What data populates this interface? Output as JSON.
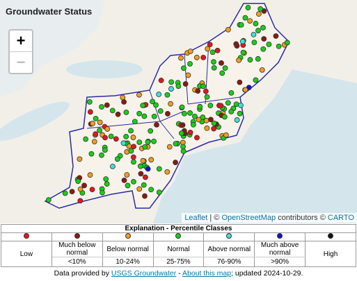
{
  "title": "Groundwater Status",
  "zoom": {
    "in": "+",
    "out": "−"
  },
  "attribution": {
    "leaflet": "Leaflet",
    "sep": " | © ",
    "osm": "OpenStreetMap",
    "mid": " contributors © ",
    "carto": "CARTO"
  },
  "legend": {
    "title": "Explanation - Percentile Classes",
    "classes": [
      {
        "label": "Low",
        "color": "#e8141b"
      },
      {
        "label": "Much below normal",
        "range": "<10%",
        "color": "#8b1a10"
      },
      {
        "label": "Below normal",
        "range": "10-24%",
        "color": "#f39c1f"
      },
      {
        "label": "Normal",
        "range": "25-75%",
        "color": "#14d214"
      },
      {
        "label": "Above normal",
        "range": "76-90%",
        "color": "#40e0d8"
      },
      {
        "label": "Much above normal",
        "range": ">90%",
        "color": "#1010e0"
      },
      {
        "label": "High",
        "color": "#111111"
      }
    ]
  },
  "footer": {
    "prefix": "Data provided by ",
    "link1": "USGS Groundwater",
    "sep": " - ",
    "link2": "About this map",
    "suffix": "; updated 2024-10-29."
  }
}
